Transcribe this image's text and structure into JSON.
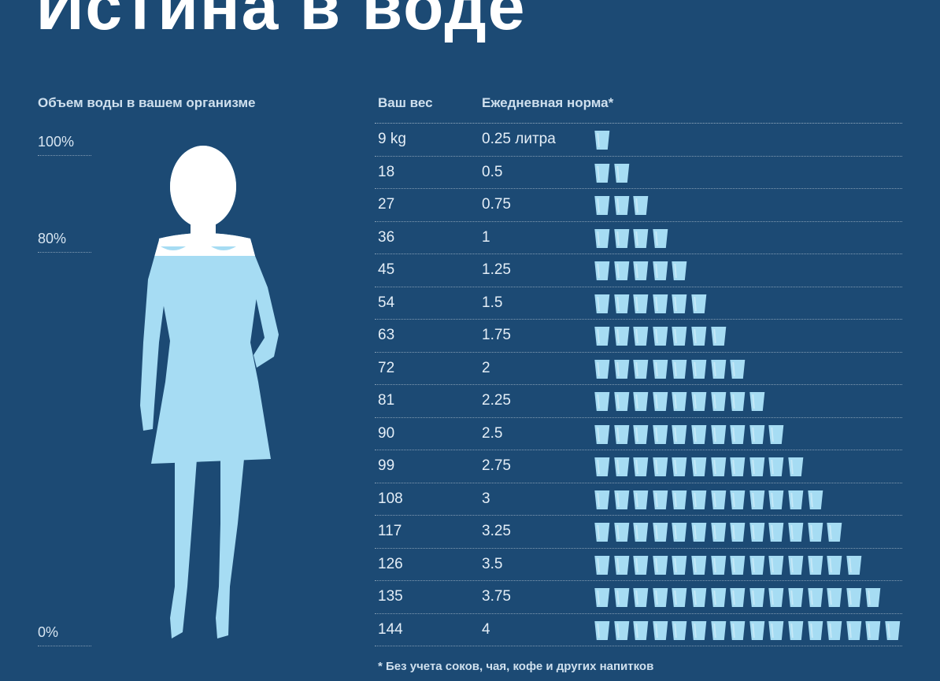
{
  "title": "Истина в воде",
  "body_scale": {
    "heading": "Объем воды в вашем организме",
    "levels": [
      "100%",
      "80%",
      "0%"
    ],
    "fill_level_percent": 80
  },
  "table": {
    "col_weight": "Ваш вес",
    "col_norm": "Ежедневная норма*"
  },
  "footnote": "* Без учета соков, чая, кофе и других напитков",
  "colors": {
    "background": "#1c4a74",
    "silhouette_water": "#a6dcf3",
    "silhouette_top": "#ffffff",
    "glass": "#a6dcf3"
  },
  "icons": {
    "glass": "water-glass-icon",
    "figure": "woman-silhouette"
  },
  "chart_data": {
    "type": "table",
    "title": "Истина в воде",
    "xlabel": "Ваш вес",
    "ylabel": "Ежедневная норма*",
    "rows": [
      {
        "weight": "9 kg",
        "norm": "0.25 литра",
        "glasses": 1
      },
      {
        "weight": "18",
        "norm": "0.5",
        "glasses": 2
      },
      {
        "weight": "27",
        "norm": "0.75",
        "glasses": 3
      },
      {
        "weight": "36",
        "norm": "1",
        "glasses": 4
      },
      {
        "weight": "45",
        "norm": "1.25",
        "glasses": 5
      },
      {
        "weight": "54",
        "norm": "1.5",
        "glasses": 6
      },
      {
        "weight": "63",
        "norm": "1.75",
        "glasses": 7
      },
      {
        "weight": "72",
        "norm": "2",
        "glasses": 8
      },
      {
        "weight": "81",
        "norm": "2.25",
        "glasses": 9
      },
      {
        "weight": "90",
        "norm": "2.5",
        "glasses": 10
      },
      {
        "weight": "99",
        "norm": "2.75",
        "glasses": 11
      },
      {
        "weight": "108",
        "norm": "3",
        "glasses": 12
      },
      {
        "weight": "117",
        "norm": "3.25",
        "glasses": 13
      },
      {
        "weight": "126",
        "norm": "3.5",
        "glasses": 14
      },
      {
        "weight": "135",
        "norm": "3.75",
        "glasses": 15
      },
      {
        "weight": "144",
        "norm": "4",
        "glasses": 16
      }
    ]
  }
}
